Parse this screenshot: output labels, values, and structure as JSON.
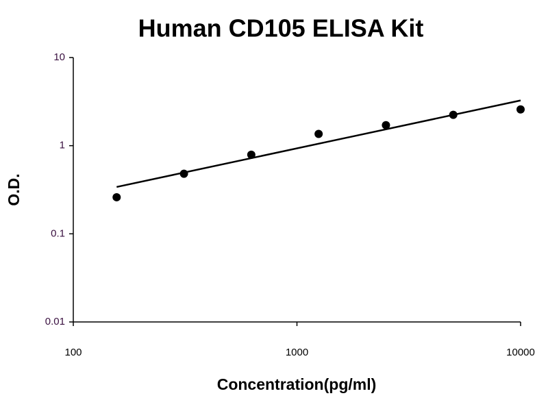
{
  "chart_data": {
    "type": "scatter",
    "title": "Human CD105 ELISA Kit",
    "x_label": "Concentration(pg/ml)",
    "y_label": "O.D.",
    "x": [
      156.25,
      312.5,
      625,
      1250,
      2500,
      5000,
      10000
    ],
    "values": [
      0.26,
      0.48,
      0.79,
      1.36,
      1.71,
      2.24,
      2.58
    ],
    "color": "#000000",
    "trendline": {
      "x": [
        156.25,
        10000
      ],
      "values": [
        0.34,
        3.26
      ]
    },
    "xscale": "log",
    "yscale": "log",
    "xlim": [
      100,
      10000
    ],
    "ylim": [
      0.01,
      10
    ],
    "xticks": [
      100,
      1000,
      10000
    ],
    "yticks": [
      0.01,
      0.1,
      1,
      10
    ],
    "grid": false
  }
}
